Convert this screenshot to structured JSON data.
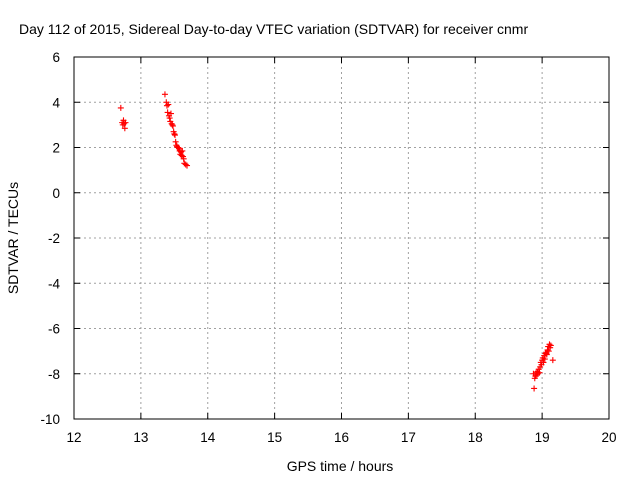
{
  "chart_data": {
    "type": "scatter",
    "title": "Day 112 of 2015, Sidereal Day-to-day VTEC variation (SDTVAR) for receiver cnmr",
    "xlabel": "GPS time / hours",
    "ylabel": "SDTVAR / TECUs",
    "xlim": [
      12,
      20
    ],
    "ylim": [
      -10,
      6
    ],
    "x_ticks": [
      12,
      13,
      14,
      15,
      16,
      17,
      18,
      19,
      20
    ],
    "y_ticks": [
      6,
      4,
      2,
      0,
      -2,
      -4,
      -6,
      -8,
      -10
    ],
    "x_tick_labels": [
      "12",
      "13",
      "14",
      "15",
      "16",
      "17",
      "18",
      "19",
      "20"
    ],
    "y_tick_labels": [
      "6",
      "4",
      "2",
      "0",
      "-2",
      "-4",
      "-6",
      "-8",
      "-10"
    ],
    "grid": true,
    "marker": "+",
    "series": [
      {
        "name": "SDTVAR",
        "color": "#ff0000",
        "points": [
          [
            12.7,
            3.75
          ],
          [
            12.72,
            3.1
          ],
          [
            12.73,
            3.0
          ],
          [
            12.74,
            3.2
          ],
          [
            12.75,
            3.05
          ],
          [
            12.76,
            2.85
          ],
          [
            12.77,
            3.1
          ],
          [
            13.36,
            4.35
          ],
          [
            13.38,
            4.0
          ],
          [
            13.39,
            3.85
          ],
          [
            13.4,
            3.55
          ],
          [
            13.41,
            3.9
          ],
          [
            13.42,
            3.4
          ],
          [
            13.43,
            3.3
          ],
          [
            13.44,
            3.15
          ],
          [
            13.45,
            3.5
          ],
          [
            13.46,
            3.05
          ],
          [
            13.47,
            3.0
          ],
          [
            13.48,
            2.95
          ],
          [
            13.49,
            2.7
          ],
          [
            13.5,
            2.6
          ],
          [
            13.51,
            2.55
          ],
          [
            13.52,
            2.25
          ],
          [
            13.53,
            2.1
          ],
          [
            13.54,
            2.05
          ],
          [
            13.55,
            2.0
          ],
          [
            13.56,
            2.0
          ],
          [
            13.57,
            1.95
          ],
          [
            13.58,
            1.85
          ],
          [
            13.59,
            1.7
          ],
          [
            13.6,
            1.8
          ],
          [
            13.61,
            1.65
          ],
          [
            13.62,
            1.85
          ],
          [
            13.63,
            1.6
          ],
          [
            13.64,
            1.5
          ],
          [
            13.65,
            1.3
          ],
          [
            13.67,
            1.25
          ],
          [
            13.69,
            1.2
          ],
          [
            18.87,
            -8.0
          ],
          [
            18.88,
            -8.65
          ],
          [
            18.89,
            -8.2
          ],
          [
            18.9,
            -8.1
          ],
          [
            18.91,
            -7.95
          ],
          [
            18.92,
            -8.05
          ],
          [
            18.93,
            -7.9
          ],
          [
            18.94,
            -8.0
          ],
          [
            18.95,
            -7.8
          ],
          [
            18.96,
            -7.95
          ],
          [
            18.97,
            -7.7
          ],
          [
            18.98,
            -7.5
          ],
          [
            18.99,
            -7.6
          ],
          [
            19.0,
            -7.4
          ],
          [
            19.01,
            -7.3
          ],
          [
            19.02,
            -7.5
          ],
          [
            19.03,
            -7.2
          ],
          [
            19.04,
            -7.35
          ],
          [
            19.05,
            -7.1
          ],
          [
            19.06,
            -7.05
          ],
          [
            19.07,
            -7.15
          ],
          [
            19.08,
            -6.95
          ],
          [
            19.09,
            -6.8
          ],
          [
            19.1,
            -7.0
          ],
          [
            19.11,
            -6.7
          ],
          [
            19.12,
            -6.85
          ],
          [
            19.13,
            -6.75
          ],
          [
            19.16,
            -7.4
          ]
        ]
      }
    ]
  }
}
